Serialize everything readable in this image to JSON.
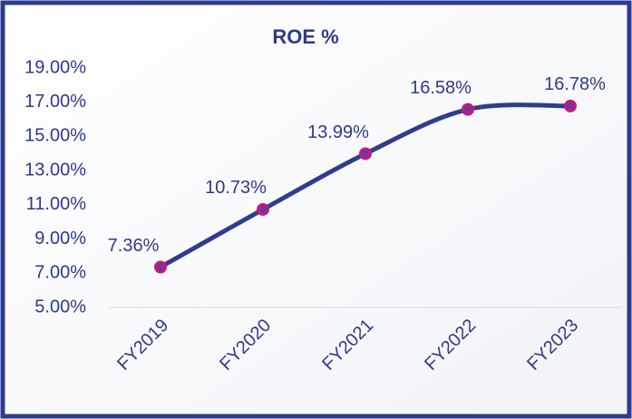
{
  "chart_data": {
    "type": "line",
    "title": "ROE %",
    "categories": [
      "FY2019",
      "FY2020",
      "FY2021",
      "FY2022",
      "FY2023"
    ],
    "series": [
      {
        "name": "ROE %",
        "color": "#2f3c8f",
        "marker_color": "#c8177f",
        "values": [
          7.36,
          10.73,
          13.99,
          16.58,
          16.78
        ],
        "value_labels": [
          "7.36%",
          "10.73%",
          "13.99%",
          "16.58%",
          "16.78%"
        ]
      }
    ],
    "ylim": [
      5,
      19
    ],
    "yticks": [
      {
        "value": 5,
        "label": "5.00%"
      },
      {
        "value": 7,
        "label": "7.00%"
      },
      {
        "value": 9,
        "label": "9.00%"
      },
      {
        "value": 11,
        "label": "11.00%"
      },
      {
        "value": 13,
        "label": "13.00%"
      },
      {
        "value": 15,
        "label": "15.00%"
      },
      {
        "value": 17,
        "label": "17.00%"
      },
      {
        "value": 19,
        "label": "19.00%"
      }
    ]
  }
}
